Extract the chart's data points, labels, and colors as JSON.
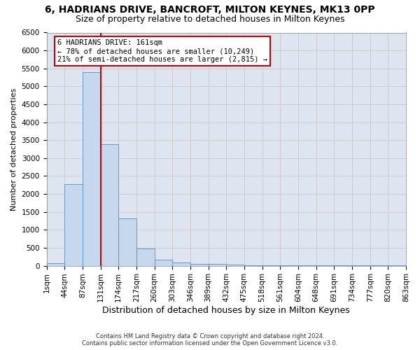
{
  "title": "6, HADRIANS DRIVE, BANCROFT, MILTON KEYNES, MK13 0PP",
  "subtitle": "Size of property relative to detached houses in Milton Keynes",
  "xlabel": "Distribution of detached houses by size in Milton Keynes",
  "ylabel": "Number of detached properties",
  "footer_line1": "Contains HM Land Registry data © Crown copyright and database right 2024.",
  "footer_line2": "Contains public sector information licensed under the Open Government Licence v3.0.",
  "annotation_title": "6 HADRIANS DRIVE: 161sqm",
  "annotation_line1": "← 78% of detached houses are smaller (10,249)",
  "annotation_line2": "21% of semi-detached houses are larger (2,815) →",
  "bar_values": [
    70,
    2270,
    5400,
    3380,
    1310,
    480,
    165,
    80,
    55,
    50,
    35,
    20,
    10,
    5,
    5,
    5,
    5,
    5,
    5,
    5
  ],
  "bin_labels": [
    "1sqm",
    "44sqm",
    "87sqm",
    "131sqm",
    "174sqm",
    "217sqm",
    "260sqm",
    "303sqm",
    "346sqm",
    "389sqm",
    "432sqm",
    "475sqm",
    "518sqm",
    "561sqm",
    "604sqm",
    "648sqm",
    "691sqm",
    "734sqm",
    "777sqm",
    "820sqm",
    "863sqm"
  ],
  "bar_color": "#c5d8ee",
  "bar_edgecolor": "#5a8fc0",
  "vline_x": 3,
  "vline_color": "#cc0000",
  "annotation_box_edgecolor": "#cc0000",
  "annotation_box_facecolor": "#ffffff",
  "ylim": [
    0,
    6500
  ],
  "yticks": [
    0,
    500,
    1000,
    1500,
    2000,
    2500,
    3000,
    3500,
    4000,
    4500,
    5000,
    5500,
    6000,
    6500
  ],
  "grid_color": "#cccccc",
  "background_color": "#dde5f0",
  "title_fontsize": 10,
  "subtitle_fontsize": 9,
  "xlabel_fontsize": 9,
  "ylabel_fontsize": 8,
  "tick_fontsize": 7.5,
  "annotation_fontsize": 7.5
}
